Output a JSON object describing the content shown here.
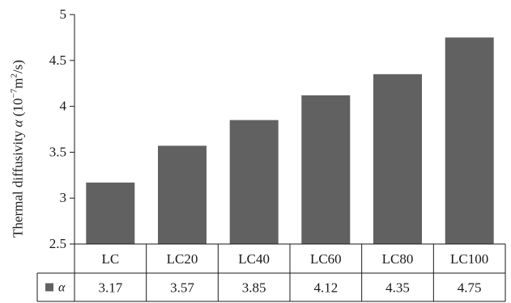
{
  "chart_data": {
    "type": "bar",
    "categories": [
      "LC",
      "LC20",
      "LC40",
      "LC60",
      "LC80",
      "LC100"
    ],
    "series": [
      {
        "name": "α",
        "values": [
          3.17,
          3.57,
          3.85,
          4.12,
          4.35,
          4.75
        ],
        "color": "#616161"
      }
    ],
    "ylim": [
      2.5,
      5
    ],
    "yticks": [
      "2.5",
      "3",
      "3.5",
      "4",
      "4.5",
      "5"
    ],
    "ylabel": {
      "prefix": "Thermal diffusivity ",
      "symbol": "α",
      "unit_open": " (10",
      "unit_exp": "−7",
      "unit_mid": "m",
      "unit_exp2": "2",
      "unit_close": "/s)"
    },
    "data_table": {
      "legend_label": "α",
      "values": [
        "3.17",
        "3.57",
        "3.85",
        "4.12",
        "4.35",
        "4.75"
      ]
    },
    "grid": false,
    "legend": "in data table"
  }
}
